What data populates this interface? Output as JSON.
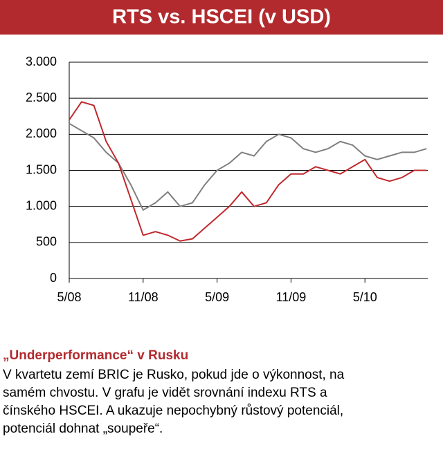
{
  "chart_data": {
    "type": "line",
    "title": "RTS vs. HSCEI (v USD)",
    "x": [
      0,
      1,
      2,
      3,
      4,
      5,
      6,
      7,
      8,
      9,
      10,
      11,
      12,
      13,
      14,
      15,
      16,
      17,
      18,
      19,
      20,
      21,
      22,
      23,
      24,
      25,
      26,
      27,
      28,
      29
    ],
    "series": [
      {
        "color": "#7f7f7f",
        "values": [
          2150,
          2050,
          1950,
          1750,
          1600,
          1300,
          950,
          1050,
          1200,
          1000,
          1050,
          1300,
          1500,
          1600,
          1750,
          1700,
          1900,
          2000,
          1950,
          1800,
          1750,
          1800,
          1900,
          1850,
          1700,
          1650,
          1700,
          1750,
          1750,
          1800
        ]
      },
      {
        "color": "#c0282d",
        "values": [
          2200,
          2450,
          2400,
          1900,
          1600,
          1100,
          600,
          650,
          600,
          520,
          550,
          700,
          850,
          1000,
          1200,
          1000,
          1050,
          1300,
          1450,
          1450,
          1550,
          1500,
          1450,
          1550,
          1650,
          1400,
          1350,
          1400,
          1500,
          1500
        ]
      }
    ],
    "xlim": [
      0,
      29.1
    ],
    "xticks": [
      {
        "value": 0,
        "label": "5/08"
      },
      {
        "value": 6,
        "label": "11/08"
      },
      {
        "value": 12,
        "label": "5/09"
      },
      {
        "value": 18,
        "label": "11/09"
      },
      {
        "value": 24,
        "label": "5/10"
      }
    ],
    "ylim": [
      0,
      3000
    ],
    "yticks": [
      0,
      500,
      {
        "value": 1000,
        "label": "1.000"
      },
      {
        "value": 1500,
        "label": "1.500"
      },
      {
        "value": 2000,
        "label": "2.000"
      },
      {
        "value": 2500,
        "label": "2.500"
      },
      {
        "value": 3000,
        "label": "3.000"
      }
    ],
    "grid": true
  },
  "article": {
    "heading": "„Underperformance“ v Rusku",
    "lines": [
      "V kvartetu zemí BRIC je Rusko, pokud jde o výkonnost, na",
      "samém chvostu. V grafu je vidět srovnání indexu RTS a",
      "čínského HSCEI. A ukazuje nepochybný růstový potenciál,",
      "potenciál dohnat „soupeře“."
    ]
  }
}
